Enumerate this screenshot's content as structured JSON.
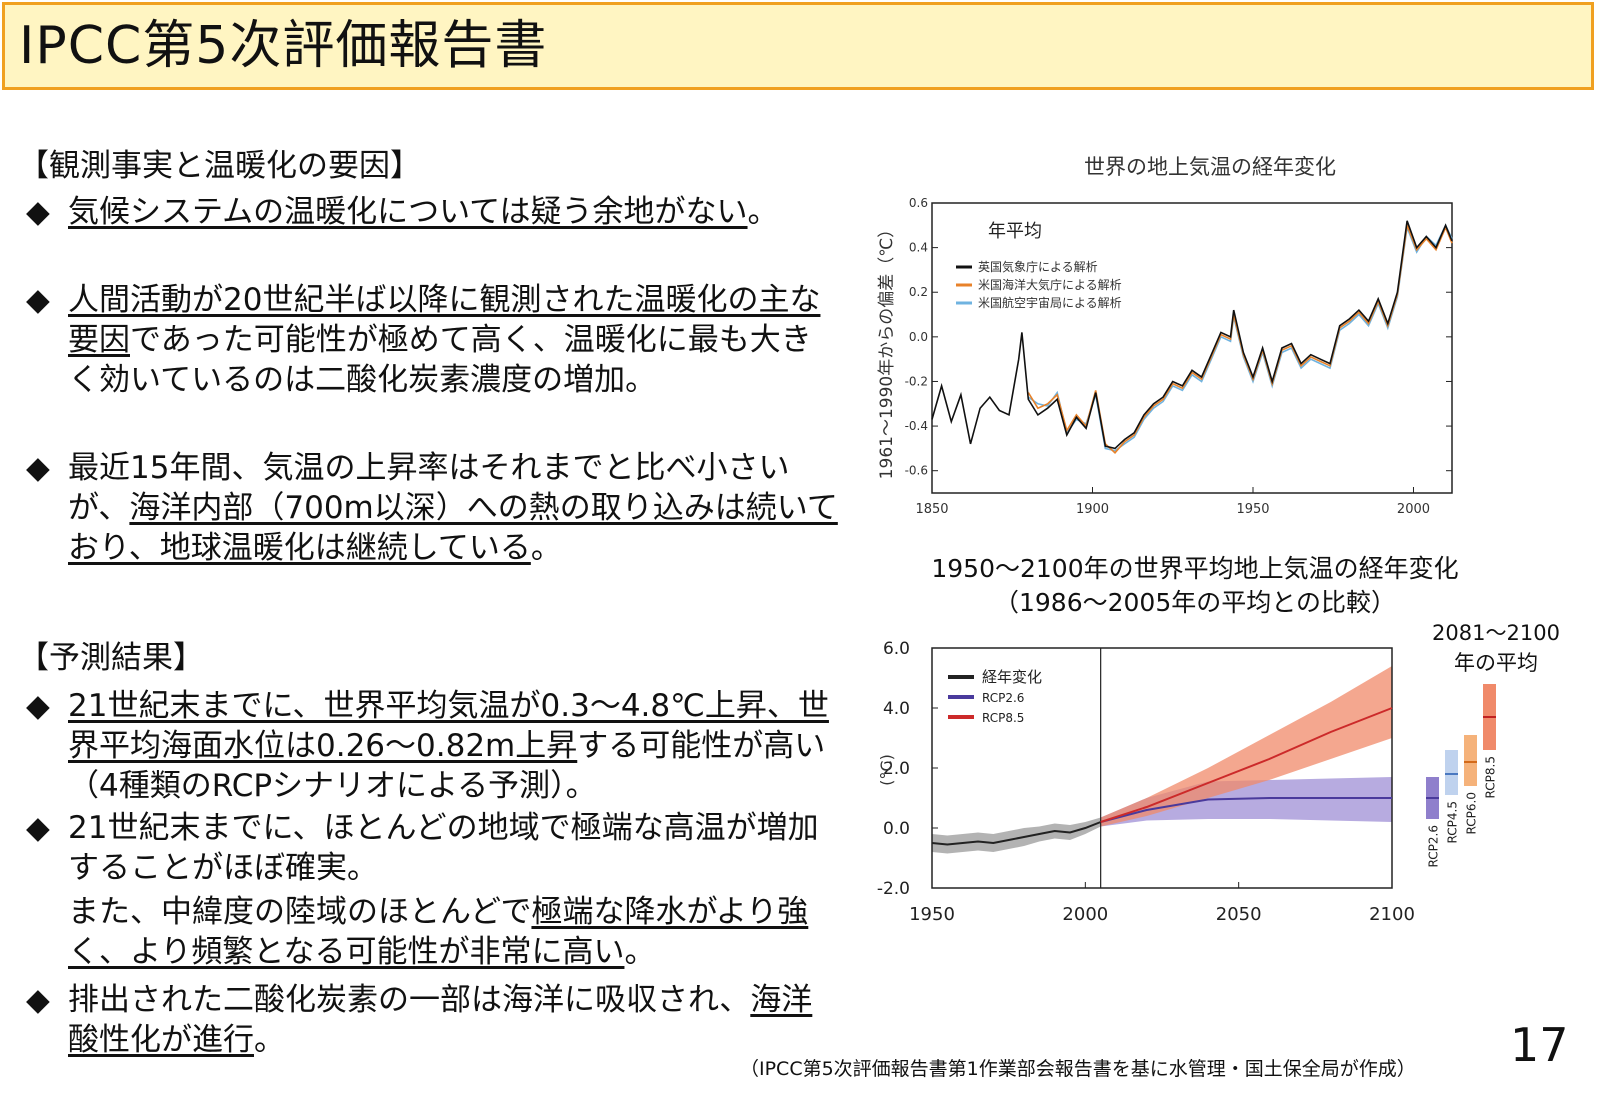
{
  "title": "IPCC第5次評価報告書",
  "section1": {
    "heading": "【観測事実と温暖化の要因】",
    "bullets": [
      {
        "u1": "気候システムの温暖化については疑う余地がない",
        "t1": "。"
      },
      {
        "u1": "人間活動が20世紀半ば以降に観測された温暖化の主な要因",
        "t1": "であった可能性が極めて高く、温暖化に最も大きく効いているのは二酸化炭素濃度の増加。"
      },
      {
        "t0": "最近15年間、気温の上昇率はそれまでと比べ小さいが、",
        "u1": "海洋内部（700m以深）への熱の取り込みは続いており、地球温暖化は継続している",
        "t1": "。"
      }
    ]
  },
  "section2": {
    "heading": "【予測結果】",
    "bullets": [
      {
        "u1": "21世紀末までに、世界平均気温が0.3〜4.8℃上昇、世界平均海面水位は0.26〜0.82m上昇",
        "t1": "する可能性が高い（4種類のRCPシナリオによる予測）。"
      },
      {
        "t0": "21世紀末までに、ほとんどの地域で極端な高温が増加することがほぼ確実。"
      },
      {
        "t0": "また、中緯度の陸域のほとんどで",
        "u1": "極端な降水がより強く、より頻繁となる可能性が非常に高い",
        "t1": "。"
      },
      {
        "t0": "排出された二酸化炭素の一部は海洋に吸収され、",
        "u1": "海洋酸性化が進行",
        "t1": "。"
      }
    ]
  },
  "bullet_mark": "◆",
  "source": "（IPCC第5次評価報告書第1作業部会報告書を基に水管理・国土保全局が作成）",
  "page_number": "17",
  "chart_data": [
    {
      "type": "line",
      "title": "世界の地上気温の経年変化",
      "panel_label": "年平均",
      "ylabel": "1961〜1990年からの偏差（℃）",
      "xlabel": "",
      "xlim": [
        1850,
        2012
      ],
      "ylim": [
        -0.7,
        0.6
      ],
      "xticks": [
        "1850",
        "1900",
        "1950",
        "2000"
      ],
      "yticks": [
        "0.6",
        "0.4",
        "0.2",
        "0.0",
        "-0.2",
        "-0.4",
        "-0.6"
      ],
      "x": [
        1850,
        1853,
        1856,
        1859,
        1862,
        1865,
        1868,
        1871,
        1874,
        1877,
        1878,
        1880,
        1883,
        1886,
        1889,
        1892,
        1895,
        1898,
        1901,
        1904,
        1907,
        1910,
        1913,
        1916,
        1919,
        1922,
        1925,
        1928,
        1931,
        1934,
        1937,
        1940,
        1943,
        1944,
        1947,
        1950,
        1953,
        1956,
        1959,
        1962,
        1965,
        1968,
        1971,
        1974,
        1977,
        1980,
        1983,
        1986,
        1989,
        1992,
        1995,
        1998,
        2001,
        2004,
        2007,
        2010,
        2012
      ],
      "series": [
        {
          "name": "英国気象庁による解析",
          "color": "#111111",
          "values": [
            -0.37,
            -0.22,
            -0.38,
            -0.26,
            -0.48,
            -0.32,
            -0.27,
            -0.33,
            -0.35,
            -0.1,
            0.02,
            -0.28,
            -0.35,
            -0.32,
            -0.28,
            -0.44,
            -0.36,
            -0.41,
            -0.25,
            -0.49,
            -0.5,
            -0.46,
            -0.43,
            -0.35,
            -0.3,
            -0.27,
            -0.2,
            -0.22,
            -0.15,
            -0.18,
            -0.08,
            0.02,
            0.0,
            0.12,
            -0.07,
            -0.18,
            -0.05,
            -0.2,
            -0.05,
            -0.03,
            -0.12,
            -0.08,
            -0.1,
            -0.12,
            0.05,
            0.08,
            0.12,
            0.07,
            0.17,
            0.06,
            0.2,
            0.52,
            0.4,
            0.45,
            0.4,
            0.5,
            0.43
          ]
        },
        {
          "name": "米国海洋大気庁による解析",
          "color": "#e8822a",
          "values": [
            null,
            null,
            null,
            null,
            null,
            null,
            null,
            null,
            null,
            null,
            null,
            -0.25,
            -0.32,
            -0.3,
            -0.26,
            -0.42,
            -0.35,
            -0.4,
            -0.24,
            -0.48,
            -0.52,
            -0.47,
            -0.44,
            -0.36,
            -0.31,
            -0.28,
            -0.21,
            -0.23,
            -0.16,
            -0.19,
            -0.09,
            0.01,
            -0.01,
            0.1,
            -0.08,
            -0.19,
            -0.06,
            -0.21,
            -0.06,
            -0.04,
            -0.13,
            -0.09,
            -0.11,
            -0.13,
            0.04,
            0.07,
            0.11,
            0.06,
            0.16,
            0.05,
            0.19,
            0.5,
            0.39,
            0.44,
            0.39,
            0.49,
            0.42
          ]
        },
        {
          "name": "米国航空宇宙局による解析",
          "color": "#6fb3e0",
          "values": [
            null,
            null,
            null,
            null,
            null,
            null,
            null,
            null,
            null,
            null,
            null,
            -0.27,
            -0.3,
            -0.31,
            -0.25,
            -0.43,
            -0.37,
            -0.39,
            -0.26,
            -0.5,
            -0.51,
            -0.48,
            -0.45,
            -0.37,
            -0.32,
            -0.29,
            -0.22,
            -0.24,
            -0.17,
            -0.2,
            -0.1,
            0.0,
            -0.02,
            0.09,
            -0.09,
            -0.2,
            -0.07,
            -0.22,
            -0.07,
            -0.05,
            -0.14,
            -0.1,
            -0.12,
            -0.14,
            0.03,
            0.06,
            0.1,
            0.05,
            0.15,
            0.04,
            0.18,
            0.49,
            0.38,
            0.45,
            0.41,
            0.5,
            0.44
          ]
        }
      ]
    },
    {
      "type": "area",
      "title": "1950〜2100年の世界平均地上気温の経年変化（1986〜2005年の平均との比較）",
      "ylabel": "(°C)",
      "xlabel": "",
      "xlim": [
        1950,
        2100
      ],
      "ylim": [
        -2.0,
        6.0
      ],
      "xticks": [
        "1950",
        "2000",
        "2050",
        "2100"
      ],
      "yticks": [
        "6.0",
        "4.0",
        "2.0",
        "0.0",
        "-2.0"
      ],
      "divider_year": 2005,
      "series": [
        {
          "name": "経年変化",
          "color": "#222222",
          "band_color": "#999999",
          "x": [
            1950,
            1955,
            1960,
            1965,
            1970,
            1975,
            1980,
            1985,
            1990,
            1995,
            2000,
            2005
          ],
          "values": [
            -0.5,
            -0.55,
            -0.5,
            -0.45,
            -0.5,
            -0.4,
            -0.3,
            -0.2,
            -0.1,
            -0.15,
            0.0,
            0.2
          ],
          "lower": [
            -0.8,
            -0.85,
            -0.8,
            -0.75,
            -0.8,
            -0.7,
            -0.6,
            -0.45,
            -0.35,
            -0.4,
            -0.2,
            0.05
          ],
          "upper": [
            -0.2,
            -0.25,
            -0.2,
            -0.15,
            -0.2,
            -0.1,
            0.0,
            0.05,
            0.15,
            0.1,
            0.2,
            0.35
          ]
        },
        {
          "name": "RCP2.6",
          "color": "#4a3a9c",
          "band_color": "#9f8fd6",
          "x": [
            2005,
            2020,
            2040,
            2060,
            2080,
            2100
          ],
          "values": [
            0.2,
            0.6,
            0.95,
            1.0,
            1.0,
            1.0
          ],
          "lower": [
            0.05,
            0.25,
            0.3,
            0.3,
            0.25,
            0.2
          ],
          "upper": [
            0.35,
            1.0,
            1.55,
            1.6,
            1.65,
            1.7
          ]
        },
        {
          "name": "RCP8.5",
          "color": "#cc2a2a",
          "band_color": "#f08a6a",
          "x": [
            2005,
            2020,
            2040,
            2060,
            2080,
            2100
          ],
          "values": [
            0.2,
            0.7,
            1.5,
            2.3,
            3.2,
            4.0
          ],
          "lower": [
            0.05,
            0.4,
            1.0,
            1.6,
            2.3,
            3.0
          ],
          "upper": [
            0.35,
            1.0,
            2.0,
            3.1,
            4.2,
            5.4
          ]
        }
      ],
      "side_panel": {
        "title": "2081〜2100年の平均",
        "bars": [
          {
            "name": "RCP2.6",
            "mean": 1.0,
            "low": 0.3,
            "high": 1.7,
            "color": "#8f7fcc",
            "mean_color": "#4a3a9c"
          },
          {
            "name": "RCP4.5",
            "mean": 1.8,
            "low": 1.1,
            "high": 2.6,
            "color": "#bfd2ee",
            "mean_color": "#4a78c0"
          },
          {
            "name": "RCP6.0",
            "mean": 2.2,
            "low": 1.4,
            "high": 3.1,
            "color": "#f5b27a",
            "mean_color": "#d36a1a"
          },
          {
            "name": "RCP8.5",
            "mean": 3.7,
            "low": 2.6,
            "high": 4.8,
            "color": "#f08a6a",
            "mean_color": "#c02020"
          }
        ]
      }
    }
  ]
}
